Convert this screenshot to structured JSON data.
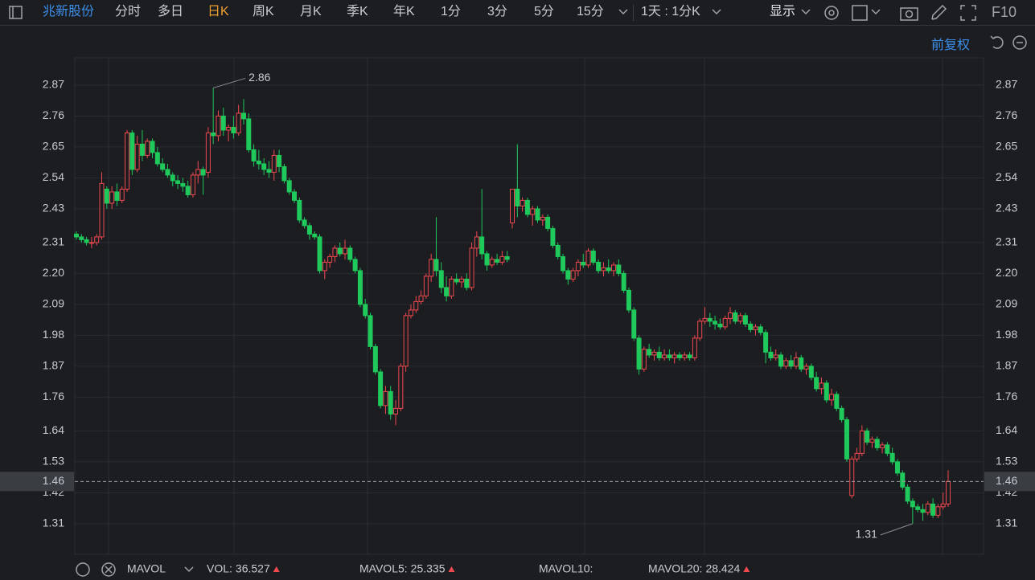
{
  "toolbar": {
    "stock": "兆新股份",
    "tabs": [
      "分时",
      "多日",
      "日K",
      "周K",
      "月K",
      "季K",
      "年K",
      "1分",
      "3分",
      "5分",
      "15分"
    ],
    "active_tab": "日K",
    "period": "1天 : 1分K",
    "display": "显示",
    "f10": "F10"
  },
  "chart_data": {
    "type": "candlestick",
    "adjust": "前复权",
    "up_color": "#f0494f",
    "down_color": "#1fc95b",
    "ylim": [
      1.201,
      2.967
    ],
    "yticks": [
      1.31,
      1.42,
      1.53,
      1.64,
      1.76,
      1.87,
      1.98,
      2.09,
      {
        "value": 2.2,
        "label": "2.20"
      },
      2.31,
      2.43,
      2.54,
      2.65,
      2.76,
      2.87
    ],
    "grid": true,
    "last_price": 1.46,
    "max_annotation": 2.86,
    "min_annotation": 1.31,
    "candles": [
      [
        2.34,
        2.35,
        2.32,
        2.33
      ],
      [
        2.33,
        2.34,
        2.31,
        2.32
      ],
      [
        2.32,
        2.33,
        2.3,
        2.31
      ],
      [
        2.31,
        2.33,
        2.29,
        2.31
      ],
      [
        2.31,
        2.34,
        2.3,
        2.33
      ],
      [
        2.33,
        2.56,
        2.32,
        2.52
      ],
      [
        2.5,
        2.51,
        2.43,
        2.45
      ],
      [
        2.45,
        2.51,
        2.43,
        2.49
      ],
      [
        2.49,
        2.52,
        2.44,
        2.46
      ],
      [
        2.46,
        2.51,
        2.45,
        2.5
      ],
      [
        2.5,
        2.71,
        2.49,
        2.7
      ],
      [
        2.7,
        2.71,
        2.55,
        2.57
      ],
      [
        2.57,
        2.69,
        2.56,
        2.66
      ],
      [
        2.66,
        2.71,
        2.6,
        2.62
      ],
      [
        2.62,
        2.68,
        2.61,
        2.67
      ],
      [
        2.67,
        2.68,
        2.61,
        2.63
      ],
      [
        2.63,
        2.65,
        2.58,
        2.59
      ],
      [
        2.59,
        2.61,
        2.56,
        2.57
      ],
      [
        2.57,
        2.59,
        2.54,
        2.55
      ],
      [
        2.55,
        2.56,
        2.51,
        2.53
      ],
      [
        2.53,
        2.55,
        2.5,
        2.52
      ],
      [
        2.52,
        2.54,
        2.49,
        2.51
      ],
      [
        2.51,
        2.53,
        2.47,
        2.48
      ],
      [
        2.48,
        2.56,
        2.47,
        2.55
      ],
      [
        2.55,
        2.6,
        2.52,
        2.57
      ],
      [
        2.57,
        2.58,
        2.48,
        2.55
      ],
      [
        2.56,
        2.72,
        2.54,
        2.7
      ],
      [
        2.7,
        2.86,
        2.66,
        2.69
      ],
      [
        2.69,
        2.78,
        2.67,
        2.76
      ],
      [
        2.76,
        2.79,
        2.69,
        2.71
      ],
      [
        2.71,
        2.73,
        2.67,
        2.72
      ],
      [
        2.72,
        2.76,
        2.68,
        2.7
      ],
      [
        2.7,
        2.8,
        2.69,
        2.77
      ],
      [
        2.77,
        2.82,
        2.73,
        2.75
      ],
      [
        2.75,
        2.77,
        2.63,
        2.64
      ],
      [
        2.64,
        2.66,
        2.58,
        2.6
      ],
      [
        2.6,
        2.64,
        2.57,
        2.59
      ],
      [
        2.59,
        2.61,
        2.55,
        2.57
      ],
      [
        2.57,
        2.6,
        2.54,
        2.56
      ],
      [
        2.56,
        2.64,
        2.53,
        2.62
      ],
      [
        2.62,
        2.64,
        2.56,
        2.58
      ],
      [
        2.58,
        2.59,
        2.52,
        2.53
      ],
      [
        2.53,
        2.54,
        2.48,
        2.49
      ],
      [
        2.49,
        2.5,
        2.45,
        2.46
      ],
      [
        2.46,
        2.47,
        2.38,
        2.39
      ],
      [
        2.39,
        2.4,
        2.36,
        2.37
      ],
      [
        2.37,
        2.38,
        2.32,
        2.34
      ],
      [
        2.34,
        2.35,
        2.32,
        2.33
      ],
      [
        2.33,
        2.34,
        2.2,
        2.21
      ],
      [
        2.21,
        2.25,
        2.18,
        2.24
      ],
      [
        2.24,
        2.27,
        2.22,
        2.26
      ],
      [
        2.26,
        2.3,
        2.24,
        2.29
      ],
      [
        2.29,
        2.31,
        2.26,
        2.27
      ],
      [
        2.27,
        2.32,
        2.25,
        2.29
      ],
      [
        2.29,
        2.3,
        2.24,
        2.25
      ],
      [
        2.25,
        2.26,
        2.2,
        2.21
      ],
      [
        2.21,
        2.22,
        2.08,
        2.09
      ],
      [
        2.09,
        2.11,
        2.04,
        2.05
      ],
      [
        2.05,
        2.06,
        1.93,
        1.94
      ],
      [
        1.94,
        1.95,
        1.84,
        1.85
      ],
      [
        1.85,
        1.86,
        1.72,
        1.73
      ],
      [
        1.73,
        1.8,
        1.7,
        1.78
      ],
      [
        1.78,
        1.8,
        1.68,
        1.7
      ],
      [
        1.7,
        1.75,
        1.66,
        1.72
      ],
      [
        1.72,
        1.88,
        1.71,
        1.87
      ],
      [
        1.87,
        2.06,
        1.85,
        2.05
      ],
      [
        2.05,
        2.09,
        2.04,
        2.07
      ],
      [
        2.07,
        2.12,
        2.06,
        2.1
      ],
      [
        2.1,
        2.14,
        2.09,
        2.12
      ],
      [
        2.12,
        2.2,
        2.11,
        2.19
      ],
      [
        2.19,
        2.27,
        2.17,
        2.25
      ],
      [
        2.25,
        2.4,
        2.19,
        2.21
      ],
      [
        2.21,
        2.24,
        2.13,
        2.15
      ],
      [
        2.15,
        2.19,
        2.1,
        2.12
      ],
      [
        2.12,
        2.19,
        2.11,
        2.18
      ],
      [
        2.18,
        2.2,
        2.16,
        2.17
      ],
      [
        2.17,
        2.19,
        2.15,
        2.18
      ],
      [
        2.18,
        2.2,
        2.14,
        2.15
      ],
      [
        2.15,
        2.31,
        2.14,
        2.29
      ],
      [
        2.29,
        2.35,
        2.26,
        2.33
      ],
      [
        2.33,
        2.5,
        2.25,
        2.27
      ],
      [
        2.27,
        2.28,
        2.21,
        2.23
      ],
      [
        2.23,
        2.26,
        2.22,
        2.25
      ],
      [
        2.25,
        2.27,
        2.23,
        2.24
      ],
      [
        2.24,
        2.28,
        2.23,
        2.26
      ],
      [
        2.26,
        2.28,
        2.24,
        2.25
      ],
      [
        2.38,
        2.5,
        2.36,
        2.5
      ],
      [
        2.5,
        2.66,
        2.4,
        2.44
      ],
      [
        2.44,
        2.47,
        2.42,
        2.46
      ],
      [
        2.46,
        2.47,
        2.4,
        2.41
      ],
      [
        2.41,
        2.44,
        2.37,
        2.43
      ],
      [
        2.43,
        2.44,
        2.38,
        2.39
      ],
      [
        2.39,
        2.41,
        2.37,
        2.4
      ],
      [
        2.4,
        2.41,
        2.35,
        2.36
      ],
      [
        2.36,
        2.37,
        2.29,
        2.3
      ],
      [
        2.3,
        2.31,
        2.25,
        2.26
      ],
      [
        2.26,
        2.27,
        2.2,
        2.21
      ],
      [
        2.21,
        2.22,
        2.16,
        2.18
      ],
      [
        2.18,
        2.22,
        2.17,
        2.21
      ],
      [
        2.21,
        2.25,
        2.19,
        2.24
      ],
      [
        2.24,
        2.27,
        2.22,
        2.23
      ],
      [
        2.23,
        2.29,
        2.22,
        2.28
      ],
      [
        2.28,
        2.29,
        2.23,
        2.24
      ],
      [
        2.24,
        2.25,
        2.2,
        2.21
      ],
      [
        2.21,
        2.24,
        2.19,
        2.22
      ],
      [
        2.22,
        2.25,
        2.2,
        2.21
      ],
      [
        2.21,
        2.24,
        2.19,
        2.23
      ],
      [
        2.23,
        2.25,
        2.19,
        2.2
      ],
      [
        2.2,
        2.21,
        2.13,
        2.14
      ],
      [
        2.14,
        2.15,
        2.06,
        2.07
      ],
      [
        2.07,
        2.08,
        1.96,
        1.97
      ],
      [
        1.97,
        1.98,
        1.84,
        1.86
      ],
      [
        1.86,
        1.94,
        1.85,
        1.93
      ],
      [
        1.93,
        1.95,
        1.9,
        1.91
      ],
      [
        1.91,
        1.93,
        1.89,
        1.92
      ],
      [
        1.92,
        1.94,
        1.89,
        1.9
      ],
      [
        1.9,
        1.93,
        1.89,
        1.91
      ],
      [
        1.91,
        1.93,
        1.89,
        1.9
      ],
      [
        1.9,
        1.92,
        1.88,
        1.91
      ],
      [
        1.91,
        1.92,
        1.89,
        1.9
      ],
      [
        1.9,
        1.92,
        1.89,
        1.91
      ],
      [
        1.91,
        1.92,
        1.89,
        1.9
      ],
      [
        1.9,
        1.98,
        1.89,
        1.97
      ],
      [
        1.97,
        2.04,
        1.96,
        2.03
      ],
      [
        2.03,
        2.08,
        2.02,
        2.04
      ],
      [
        2.04,
        2.06,
        2.01,
        2.03
      ],
      [
        2.03,
        2.05,
        2.0,
        2.02
      ],
      [
        2.02,
        2.04,
        2.0,
        2.01
      ],
      [
        2.01,
        2.05,
        2.0,
        2.04
      ],
      [
        2.04,
        2.08,
        2.02,
        2.06
      ],
      [
        2.06,
        2.07,
        2.02,
        2.03
      ],
      [
        2.03,
        2.06,
        2.02,
        2.05
      ],
      [
        2.05,
        2.06,
        2.01,
        2.02
      ],
      [
        2.02,
        2.03,
        1.99,
        2.0
      ],
      [
        2.0,
        2.02,
        1.98,
        2.01
      ],
      [
        2.01,
        2.02,
        1.98,
        1.99
      ],
      [
        1.99,
        2.0,
        1.88,
        1.92
      ],
      [
        1.92,
        1.94,
        1.89,
        1.9
      ],
      [
        1.9,
        1.93,
        1.89,
        1.91
      ],
      [
        1.91,
        1.92,
        1.86,
        1.87
      ],
      [
        1.87,
        1.9,
        1.86,
        1.89
      ],
      [
        1.89,
        1.91,
        1.86,
        1.87
      ],
      [
        1.87,
        1.92,
        1.86,
        1.9
      ],
      [
        1.9,
        1.91,
        1.85,
        1.86
      ],
      [
        1.86,
        1.88,
        1.84,
        1.87
      ],
      [
        1.87,
        1.88,
        1.82,
        1.83
      ],
      [
        1.83,
        1.85,
        1.78,
        1.79
      ],
      [
        1.79,
        1.83,
        1.77,
        1.81
      ],
      [
        1.81,
        1.82,
        1.74,
        1.75
      ],
      [
        1.75,
        1.79,
        1.73,
        1.77
      ],
      [
        1.77,
        1.78,
        1.71,
        1.72
      ],
      [
        1.72,
        1.73,
        1.67,
        1.68
      ],
      [
        1.68,
        1.69,
        1.53,
        1.54
      ],
      [
        1.41,
        1.55,
        1.4,
        1.54
      ],
      [
        1.54,
        1.58,
        1.53,
        1.56
      ],
      [
        1.56,
        1.66,
        1.55,
        1.64
      ],
      [
        1.64,
        1.65,
        1.59,
        1.6
      ],
      [
        1.6,
        1.62,
        1.58,
        1.61
      ],
      [
        1.61,
        1.62,
        1.57,
        1.58
      ],
      [
        1.58,
        1.6,
        1.56,
        1.59
      ],
      [
        1.59,
        1.6,
        1.55,
        1.56
      ],
      [
        1.56,
        1.58,
        1.52,
        1.53
      ],
      [
        1.53,
        1.54,
        1.48,
        1.49
      ],
      [
        1.49,
        1.5,
        1.43,
        1.44
      ],
      [
        1.44,
        1.45,
        1.38,
        1.39
      ],
      [
        1.39,
        1.4,
        1.31,
        1.37
      ],
      [
        1.37,
        1.38,
        1.35,
        1.36
      ],
      [
        1.36,
        1.38,
        1.32,
        1.35
      ],
      [
        1.35,
        1.39,
        1.34,
        1.38
      ],
      [
        1.38,
        1.4,
        1.33,
        1.34
      ],
      [
        1.34,
        1.38,
        1.33,
        1.37
      ],
      [
        1.37,
        1.42,
        1.36,
        1.38
      ],
      [
        1.38,
        1.5,
        1.37,
        1.46
      ]
    ]
  },
  "indicator_bar": {
    "name": "MAVOL",
    "items": [
      {
        "label": "VOL:",
        "value": 36.527,
        "color": "#f0494f"
      },
      {
        "label": "MAVOL5:",
        "value": 25.335,
        "color": "#f0a030"
      },
      {
        "label": "MAVOL10:",
        "value": null,
        "color": "#2a6a8a"
      },
      {
        "label": "MAVOL20:",
        "value": 28.424,
        "color": "#d36fd6"
      }
    ]
  }
}
